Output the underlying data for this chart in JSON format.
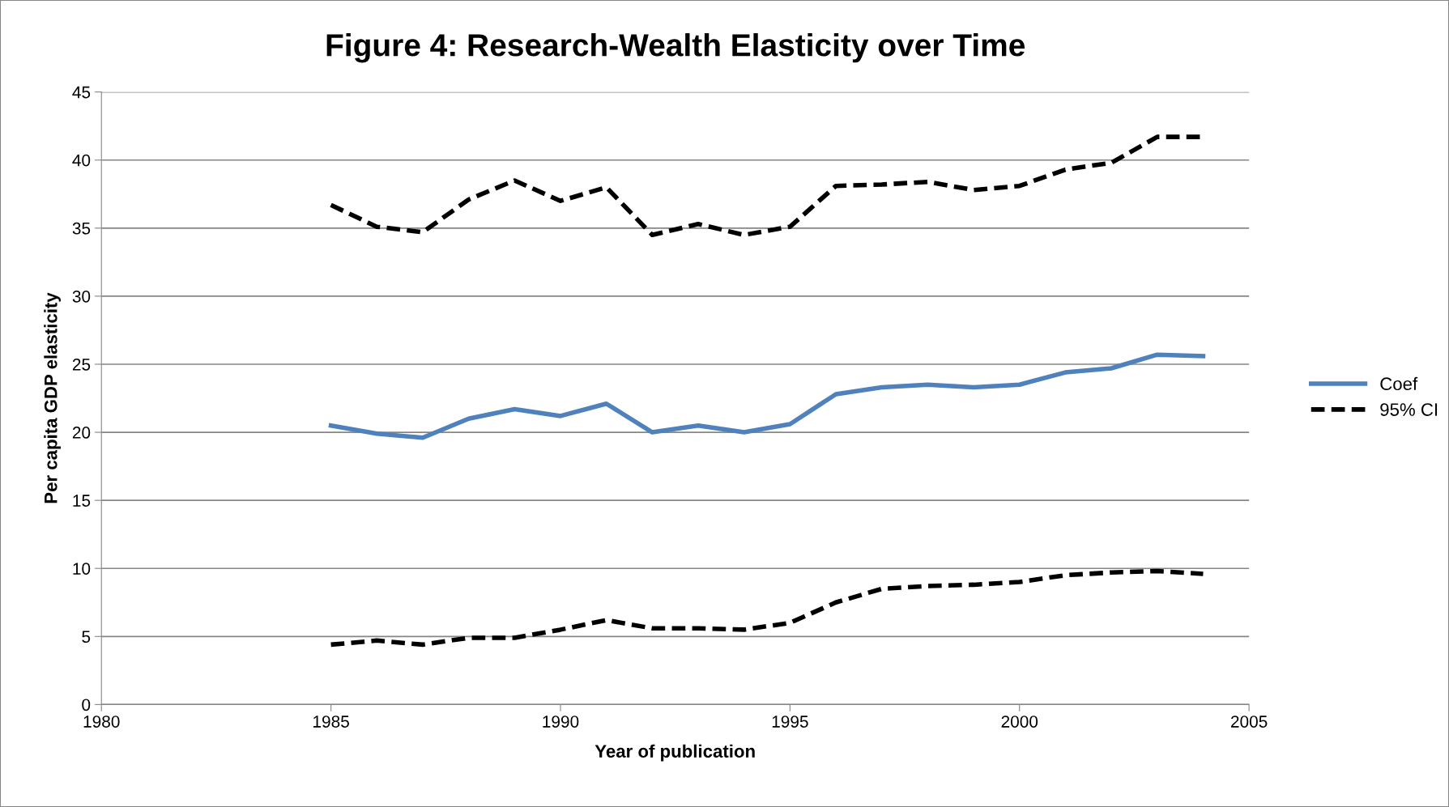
{
  "chart_data": {
    "type": "line",
    "title": "Figure 4: Research-Wealth Elasticity over Time",
    "xlabel": "Year of publication",
    "ylabel": "Per capita GDP elasticity",
    "x": [
      1985,
      1986,
      1987,
      1988,
      1989,
      1990,
      1991,
      1992,
      1993,
      1994,
      1995,
      1996,
      1997,
      1998,
      1999,
      2000,
      2001,
      2002,
      2003,
      2004
    ],
    "series": [
      {
        "name": "Coef",
        "color": "#4f81bd",
        "line_style": "solid",
        "values": [
          20.5,
          19.9,
          19.6,
          21.0,
          21.7,
          21.2,
          22.1,
          20.0,
          20.5,
          20.0,
          20.6,
          22.8,
          23.3,
          23.5,
          23.3,
          23.5,
          24.4,
          24.7,
          25.7,
          25.6
        ]
      },
      {
        "name": "95% CI",
        "color": "#000000",
        "line_style": "dashed",
        "values": [
          36.7,
          35.1,
          34.7,
          37.1,
          38.5,
          37.0,
          38.0,
          34.5,
          35.3,
          34.5,
          35.1,
          38.1,
          38.2,
          38.4,
          37.8,
          38.1,
          39.3,
          39.8,
          41.7,
          41.7
        ]
      },
      {
        "color": "#000000",
        "line_style": "dashed",
        "values": [
          4.4,
          4.7,
          4.4,
          4.9,
          4.9,
          5.5,
          6.2,
          5.6,
          5.6,
          5.5,
          6.0,
          7.5,
          8.5,
          8.7,
          8.8,
          9.0,
          9.5,
          9.7,
          9.8,
          9.6
        ]
      }
    ],
    "xlim": [
      1980,
      2005
    ],
    "xticks": [
      1980,
      1985,
      1990,
      1995,
      2000,
      2005
    ],
    "ylim": [
      0,
      45
    ],
    "yticks": [
      0,
      5,
      10,
      15,
      20,
      25,
      30,
      35,
      40,
      45
    ],
    "grid": "y",
    "legend": "right",
    "marker": "none"
  }
}
